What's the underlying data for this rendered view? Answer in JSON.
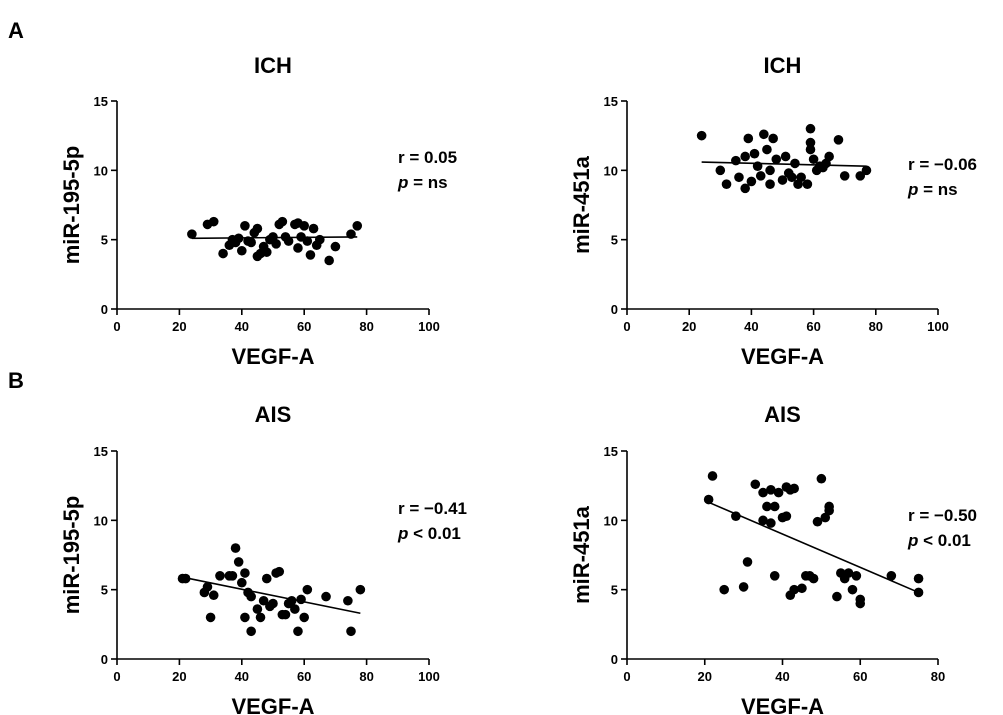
{
  "panel_labels": [
    "A",
    "B"
  ],
  "chart_data": [
    {
      "type": "scatter",
      "title": "ICH",
      "xlabel": "VEGF-A",
      "ylabel": "miR-195-5p",
      "xlim": [
        0,
        100
      ],
      "ylim": [
        0,
        15
      ],
      "xticks": [
        0,
        20,
        40,
        60,
        80,
        100
      ],
      "yticks": [
        0,
        5,
        10,
        15
      ],
      "stat_r": "r = 0.05",
      "stat_p_symbol": "p",
      "stat_p_rest": " = ns",
      "fit": {
        "x": [
          24,
          77
        ],
        "y": [
          5.1,
          5.2
        ]
      },
      "points": [
        [
          24,
          5.4
        ],
        [
          29,
          6.1
        ],
        [
          31,
          6.3
        ],
        [
          34,
          4.0
        ],
        [
          36,
          4.6
        ],
        [
          37,
          5.0
        ],
        [
          38,
          4.8
        ],
        [
          39,
          5.1
        ],
        [
          40,
          4.2
        ],
        [
          41,
          6.0
        ],
        [
          42,
          4.9
        ],
        [
          43,
          4.8
        ],
        [
          44,
          5.5
        ],
        [
          45,
          3.8
        ],
        [
          45,
          5.8
        ],
        [
          46,
          4.0
        ],
        [
          47,
          4.5
        ],
        [
          48,
          4.1
        ],
        [
          49,
          5.0
        ],
        [
          50,
          5.2
        ],
        [
          51,
          4.7
        ],
        [
          52,
          6.1
        ],
        [
          53,
          6.3
        ],
        [
          54,
          5.2
        ],
        [
          55,
          4.9
        ],
        [
          57,
          6.1
        ],
        [
          58,
          6.2
        ],
        [
          58,
          4.4
        ],
        [
          59,
          5.2
        ],
        [
          60,
          6.0
        ],
        [
          61,
          4.9
        ],
        [
          62,
          3.9
        ],
        [
          63,
          5.8
        ],
        [
          64,
          4.6
        ],
        [
          65,
          5.0
        ],
        [
          68,
          3.5
        ],
        [
          70,
          4.5
        ],
        [
          75,
          5.4
        ],
        [
          77,
          6.0
        ]
      ]
    },
    {
      "type": "scatter",
      "title": "ICH",
      "xlabel": "VEGF-A",
      "ylabel": "miR-451a",
      "xlim": [
        0,
        100
      ],
      "ylim": [
        0,
        15
      ],
      "xticks": [
        0,
        20,
        40,
        60,
        80,
        100
      ],
      "yticks": [
        0,
        5,
        10,
        15
      ],
      "stat_r": "r = −0.06",
      "stat_p_symbol": "p",
      "stat_p_rest": " = ns",
      "fit": {
        "x": [
          24,
          77
        ],
        "y": [
          10.6,
          10.3
        ]
      },
      "points": [
        [
          24,
          12.5
        ],
        [
          30,
          10.0
        ],
        [
          32,
          9.0
        ],
        [
          35,
          10.7
        ],
        [
          36,
          9.5
        ],
        [
          38,
          8.7
        ],
        [
          38,
          11.0
        ],
        [
          39,
          12.3
        ],
        [
          40,
          9.2
        ],
        [
          41,
          11.2
        ],
        [
          42,
          10.3
        ],
        [
          43,
          9.6
        ],
        [
          44,
          12.6
        ],
        [
          45,
          11.5
        ],
        [
          46,
          9.0
        ],
        [
          46,
          10.0
        ],
        [
          47,
          12.3
        ],
        [
          48,
          10.8
        ],
        [
          50,
          9.3
        ],
        [
          51,
          11.0
        ],
        [
          52,
          9.8
        ],
        [
          53,
          9.5
        ],
        [
          54,
          10.5
        ],
        [
          55,
          9.0
        ],
        [
          56,
          9.5
        ],
        [
          58,
          9.0
        ],
        [
          59,
          12.0
        ],
        [
          59,
          13.0
        ],
        [
          59,
          11.5
        ],
        [
          60,
          10.8
        ],
        [
          61,
          10.0
        ],
        [
          62,
          10.3
        ],
        [
          63,
          10.2
        ],
        [
          64,
          10.5
        ],
        [
          65,
          11.0
        ],
        [
          68,
          12.2
        ],
        [
          70,
          9.6
        ],
        [
          75,
          9.6
        ],
        [
          77,
          10.0
        ]
      ]
    },
    {
      "type": "scatter",
      "title": "AIS",
      "xlabel": "VEGF-A",
      "ylabel": "miR-195-5p",
      "xlim": [
        0,
        100
      ],
      "ylim": [
        0,
        15
      ],
      "xticks": [
        0,
        20,
        40,
        60,
        80,
        100
      ],
      "yticks": [
        0,
        5,
        10,
        15
      ],
      "stat_r": "r =  −0.41",
      "stat_p_symbol": "p",
      "stat_p_rest": " < 0.01",
      "fit": {
        "x": [
          21,
          78
        ],
        "y": [
          5.9,
          3.3
        ]
      },
      "points": [
        [
          21,
          5.8
        ],
        [
          22,
          5.8
        ],
        [
          28,
          4.8
        ],
        [
          29,
          5.2
        ],
        [
          30,
          3.0
        ],
        [
          31,
          4.6
        ],
        [
          33,
          6.0
        ],
        [
          36,
          6.0
        ],
        [
          37,
          6.0
        ],
        [
          38,
          8.0
        ],
        [
          39,
          7.0
        ],
        [
          40,
          5.5
        ],
        [
          41,
          3.0
        ],
        [
          41,
          6.2
        ],
        [
          42,
          4.8
        ],
        [
          43,
          2.0
        ],
        [
          43,
          4.5
        ],
        [
          45,
          3.6
        ],
        [
          46,
          3.0
        ],
        [
          47,
          4.2
        ],
        [
          48,
          5.8
        ],
        [
          49,
          3.8
        ],
        [
          50,
          4.0
        ],
        [
          51,
          6.2
        ],
        [
          52,
          6.3
        ],
        [
          53,
          3.2
        ],
        [
          54,
          3.2
        ],
        [
          55,
          4.0
        ],
        [
          56,
          4.2
        ],
        [
          57,
          3.6
        ],
        [
          58,
          2.0
        ],
        [
          59,
          4.3
        ],
        [
          60,
          3.0
        ],
        [
          61,
          5.0
        ],
        [
          67,
          4.5
        ],
        [
          74,
          4.2
        ],
        [
          75,
          2.0
        ],
        [
          78,
          5.0
        ]
      ]
    },
    {
      "type": "scatter",
      "title": "AIS",
      "xlabel": "VEGF-A",
      "ylabel": "miR-451a",
      "xlim": [
        0,
        80
      ],
      "ylim": [
        0,
        15
      ],
      "xticks": [
        0,
        20,
        40,
        60,
        80
      ],
      "yticks": [
        0,
        5,
        10,
        15
      ],
      "stat_r": "r = −0.50",
      "stat_p_symbol": "p",
      "stat_p_rest": " < 0.01",
      "fit": {
        "x": [
          21,
          75
        ],
        "y": [
          11.3,
          4.8
        ]
      },
      "points": [
        [
          21,
          11.5
        ],
        [
          22,
          13.2
        ],
        [
          25,
          5.0
        ],
        [
          28,
          10.3
        ],
        [
          30,
          5.2
        ],
        [
          31,
          7.0
        ],
        [
          33,
          12.6
        ],
        [
          35,
          12.0
        ],
        [
          35,
          10.0
        ],
        [
          36,
          11.0
        ],
        [
          37,
          9.8
        ],
        [
          37,
          12.2
        ],
        [
          38,
          6.0
        ],
        [
          38,
          11.0
        ],
        [
          39,
          12.0
        ],
        [
          40,
          10.2
        ],
        [
          41,
          12.4
        ],
        [
          41,
          10.3
        ],
        [
          42,
          12.2
        ],
        [
          42,
          4.6
        ],
        [
          43,
          12.3
        ],
        [
          43,
          5.0
        ],
        [
          45,
          5.1
        ],
        [
          46,
          6.0
        ],
        [
          47,
          6.0
        ],
        [
          48,
          5.8
        ],
        [
          49,
          9.9
        ],
        [
          50,
          13.0
        ],
        [
          51,
          10.2
        ],
        [
          52,
          11.0
        ],
        [
          52,
          10.7
        ],
        [
          54,
          4.5
        ],
        [
          55,
          6.2
        ],
        [
          56,
          5.8
        ],
        [
          57,
          6.2
        ],
        [
          58,
          5.0
        ],
        [
          59,
          6.0
        ],
        [
          60,
          4.0
        ],
        [
          60,
          4.3
        ],
        [
          68,
          6.0
        ],
        [
          75,
          5.8
        ],
        [
          75,
          4.8
        ]
      ]
    }
  ]
}
